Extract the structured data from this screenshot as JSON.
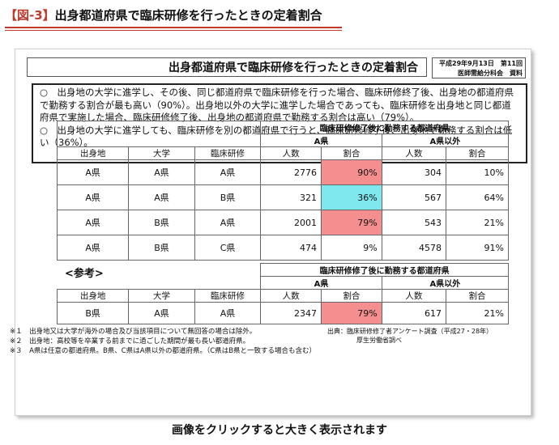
{
  "page": {
    "heading_tag": "【図-3】",
    "heading_text": "出身都道府県で臨床研修を行ったときの定着割合",
    "caption": "画像をクリックすると大きく表示されます"
  },
  "slide": {
    "title": "出身都道府県で臨床研修を行ったときの定着割合",
    "source_line1": "平成29年9月13日　第11回",
    "source_line2": "医師需給分科会　資料",
    "summary": [
      "○　出身地の大学に進学し、その後、同じ都道府県で臨床研修を行った場合、臨床研修終了後、出身地の都道府県で勤務する割合が最も高い（90%）。出身地以外の大学に進学した場合であっても、臨床研修を出身地と同じ都道府県で実施した場合、臨床研修修了後、出身地の都道府県で勤務する割合は高い（79%）。",
      "○　出身地の大学に進学しても、臨床研修を別の都道府県で行うと、臨床研修修了後、出身地で勤務する割合は低い（36%）。"
    ],
    "table_group_header": "臨床研修修了後に勤務する都道府県",
    "col_a_pref": "A県",
    "col_other": "A県以外",
    "col_hometown": "出身地",
    "col_university": "大学",
    "col_training": "臨床研修",
    "col_count": "人数",
    "col_ratio": "割合",
    "rows": [
      {
        "home": "A県",
        "univ": "A県",
        "train": "A県",
        "a_count": "2776",
        "a_ratio": "90%",
        "o_count": "304",
        "o_ratio": "10%",
        "highlight": "red"
      },
      {
        "home": "A県",
        "univ": "A県",
        "train": "B県",
        "a_count": "321",
        "a_ratio": "36%",
        "o_count": "567",
        "o_ratio": "64%",
        "highlight": "cyan"
      },
      {
        "home": "A県",
        "univ": "B県",
        "train": "A県",
        "a_count": "2001",
        "a_ratio": "79%",
        "o_count": "543",
        "o_ratio": "21%",
        "highlight": "red"
      },
      {
        "home": "A県",
        "univ": "B県",
        "train": "C県",
        "a_count": "474",
        "a_ratio": "9%",
        "o_count": "4578",
        "o_ratio": "91%",
        "highlight": "none"
      }
    ],
    "ref_label": "<参考>",
    "ref_row": {
      "home": "B県",
      "univ": "A県",
      "train": "A県",
      "a_count": "2347",
      "a_ratio": "79%",
      "o_count": "617",
      "o_ratio": "21%",
      "highlight": "red"
    },
    "notes": [
      "※１　出身地又は大学が海外の場合及び当該項目について無回答の場合は除外。",
      "※２　出身地：高校等を卒業する前までに過ごした期間が最も長い都道府県。",
      "※３　A県は任意の都道府県。B県、C県はA県以外の都道府県。（C県はB県と一致する場合も含む）"
    ],
    "source_note_line1": "出典：臨床研修修了者アンケート調査（平成27・28年）",
    "source_note_line2": "厚生労働省調べ"
  },
  "colors": {
    "red": "#f58f8f",
    "cyan": "#7ee8ee",
    "accent": "#c0392b"
  }
}
